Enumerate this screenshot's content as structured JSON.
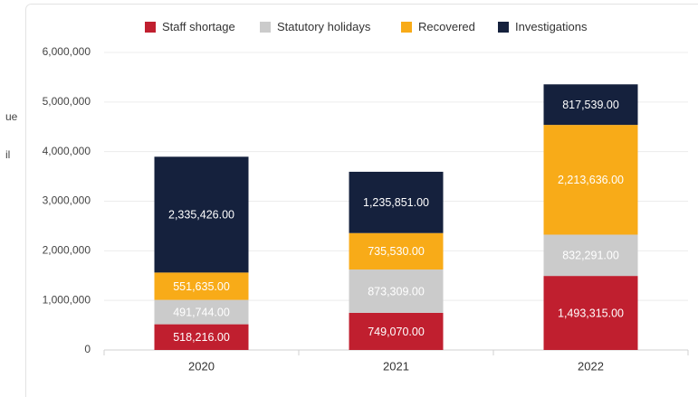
{
  "side_labels": [
    "ue",
    "il"
  ],
  "chart_data": {
    "type": "stacked_bar",
    "categories": [
      "2020",
      "2021",
      "2022"
    ],
    "series": [
      {
        "name": "Staff shortage",
        "color": "#c01f2f",
        "values": [
          518216,
          749070,
          1493315
        ],
        "value_labels": [
          "518,216.00",
          "749,070.00",
          "1,493,315.00"
        ]
      },
      {
        "name": "Statutory holidays",
        "color": "#cbcbcb",
        "values": [
          491744,
          873309,
          832291
        ],
        "value_labels": [
          "491,744.00",
          "873,309.00",
          "832,291.00"
        ]
      },
      {
        "name": "Recovered",
        "color": "#f8ab18",
        "values": [
          551635,
          735530,
          2213636
        ],
        "value_labels": [
          "551,635.00",
          "735,530.00",
          "2,213,636.00"
        ]
      },
      {
        "name": "Investigations",
        "color": "#15213d",
        "values": [
          2335426,
          1235851,
          817539
        ],
        "value_labels": [
          "2,335,426.00",
          "1,235,851.00",
          "817,539.00"
        ]
      }
    ],
    "ylim": [
      0,
      6000000
    ],
    "yticks": [
      0,
      {
        "value": 1000000,
        "label": "1,000,000"
      },
      {
        "value": 2000000,
        "label": "2,000,000"
      },
      {
        "value": 3000000,
        "label": "3,000,000"
      },
      {
        "value": 4000000,
        "label": "4,000,000"
      },
      {
        "value": 5000000,
        "label": "5,000,000"
      },
      {
        "value": 6000000,
        "label": "6,000,000"
      }
    ],
    "grid": true,
    "legend": "top"
  }
}
